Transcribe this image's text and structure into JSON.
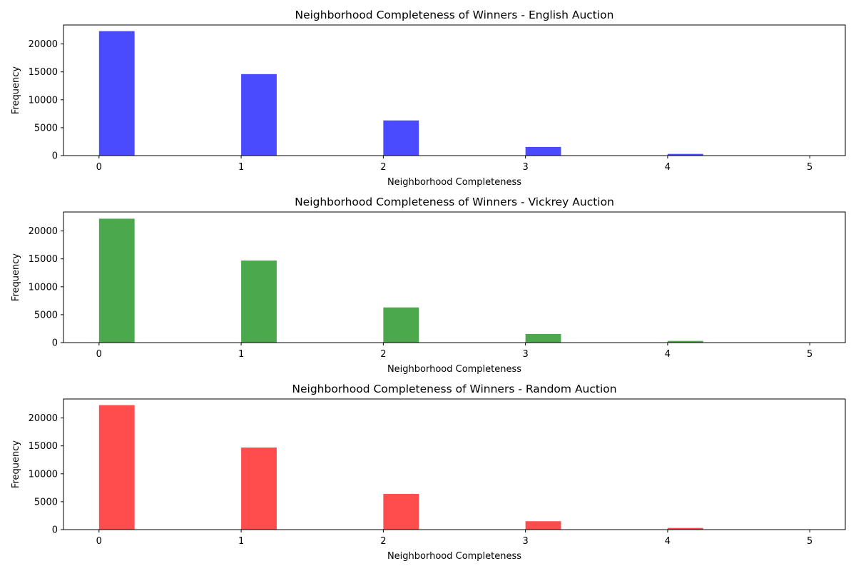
{
  "chart_data": [
    {
      "type": "bar",
      "title": "Neighborhood Completeness of Winners - English Auction",
      "xlabel": "Neighborhood Completeness",
      "ylabel": "Frequency",
      "color": "#4a4aff",
      "x": [
        0,
        1,
        2,
        3,
        4
      ],
      "values": [
        22300,
        14600,
        6300,
        1550,
        300
      ],
      "bin_width": 0.25,
      "xlim": [
        -0.25,
        5.25
      ],
      "ylim": [
        0,
        23400
      ],
      "xticks": [
        0,
        1,
        2,
        3,
        4,
        5
      ],
      "yticks": [
        0,
        5000,
        10000,
        15000,
        20000
      ],
      "grid": false
    },
    {
      "type": "bar",
      "title": "Neighborhood Completeness of Winners - Vickrey Auction",
      "xlabel": "Neighborhood Completeness",
      "ylabel": "Frequency",
      "color": "#4ca84c",
      "x": [
        0,
        1,
        2,
        3,
        4
      ],
      "values": [
        22200,
        14700,
        6300,
        1550,
        300
      ],
      "bin_width": 0.25,
      "xlim": [
        -0.25,
        5.25
      ],
      "ylim": [
        0,
        23400
      ],
      "xticks": [
        0,
        1,
        2,
        3,
        4,
        5
      ],
      "yticks": [
        0,
        5000,
        10000,
        15000,
        20000
      ],
      "grid": false
    },
    {
      "type": "bar",
      "title": "Neighborhood Completeness of Winners - Random Auction",
      "xlabel": "Neighborhood Completeness",
      "ylabel": "Frequency",
      "color": "#ff4c4c",
      "x": [
        0,
        1,
        2,
        3,
        4
      ],
      "values": [
        22300,
        14700,
        6400,
        1500,
        300
      ],
      "bin_width": 0.25,
      "xlim": [
        -0.25,
        5.25
      ],
      "ylim": [
        0,
        23400
      ],
      "xticks": [
        0,
        1,
        2,
        3,
        4,
        5
      ],
      "yticks": [
        0,
        5000,
        10000,
        15000,
        20000
      ],
      "grid": false
    }
  ]
}
